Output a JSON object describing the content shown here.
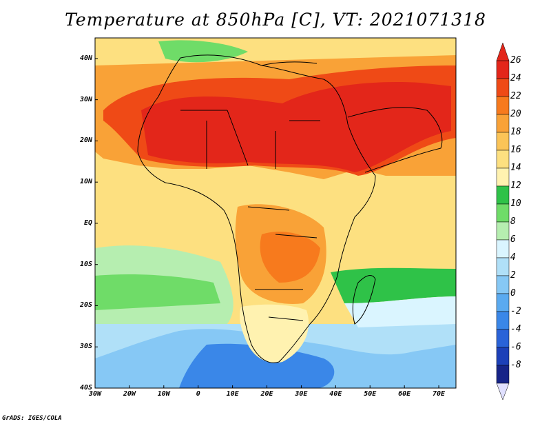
{
  "title": "Temperature at 850hPa [C], VT: 2021071318",
  "credit": "GrADS: IGES/COLA",
  "map": {
    "lon_labels": [
      "30W",
      "20W",
      "10W",
      "0",
      "10E",
      "20E",
      "30E",
      "40E",
      "50E",
      "60E",
      "70E"
    ],
    "lat_labels": [
      "40N",
      "30N",
      "20N",
      "10N",
      "EQ",
      "10S",
      "20S",
      "30S",
      "40S"
    ],
    "lon_range": [
      -30,
      75
    ],
    "lat_range": [
      -40,
      45
    ]
  },
  "colorbar": {
    "labels": [
      "26",
      "24",
      "22",
      "20",
      "18",
      "16",
      "14",
      "12",
      "10",
      "8",
      "6",
      "4",
      "2",
      "0",
      "-2",
      "-4",
      "-6",
      "-8"
    ],
    "colors": [
      "#e3261a",
      "#ef4a16",
      "#f77a1d",
      "#f9a237",
      "#fbc457",
      "#fde080",
      "#fff2b0",
      "#2fc248",
      "#6fdc68",
      "#b6eeb0",
      "#daf5ff",
      "#b0e0f8",
      "#86c8f5",
      "#5aaaf0",
      "#3a87e8",
      "#2a63d8",
      "#1c40b8",
      "#162488"
    ]
  }
}
